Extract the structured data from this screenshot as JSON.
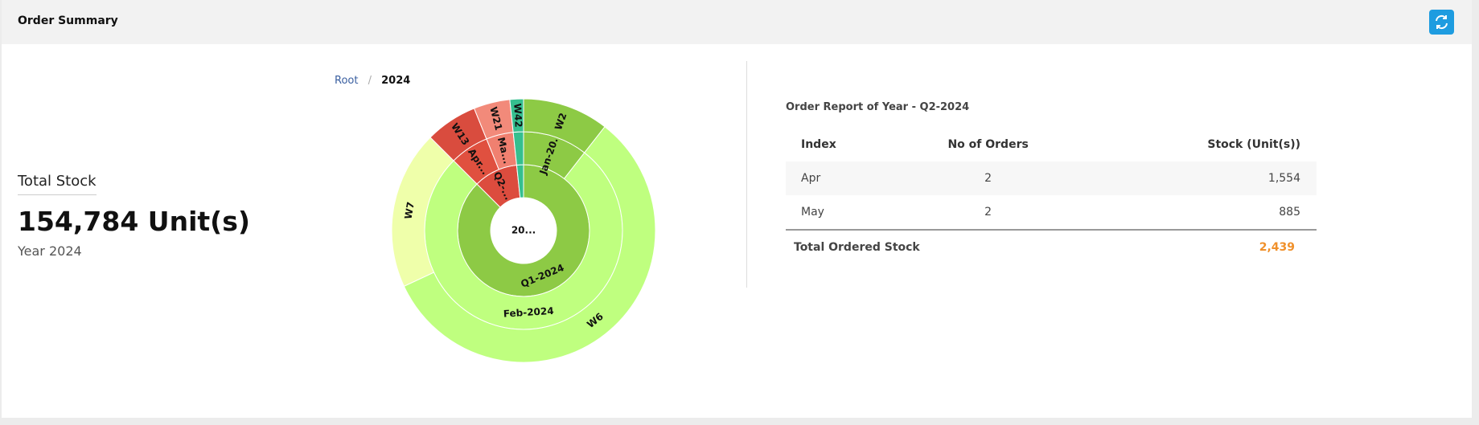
{
  "header": {
    "title": "Order Summary"
  },
  "summary": {
    "label": "Total Stock",
    "value": "154,784 Unit(s)",
    "period": "Year 2024"
  },
  "breadcrumb": {
    "items": [
      "Root",
      "2024"
    ],
    "separator": "/"
  },
  "chart_data": {
    "type": "sunburst",
    "center_label": "20...",
    "rings": [
      [
        {
          "label": "Q1-2024",
          "value": 315,
          "color": "#8dca45"
        },
        {
          "label": "Q2-...",
          "value": 39,
          "color": "#dc4c3e"
        },
        {
          "label": null,
          "value": 6,
          "color": "#35bf8f"
        }
      ],
      [
        {
          "label": "Jan-20...",
          "value": 38,
          "color": "#8dca45"
        },
        {
          "label": "Feb-2024",
          "value": 277,
          "color": "#bfff7f"
        },
        {
          "label": "Apr...",
          "value": 23,
          "color": "#e0503f"
        },
        {
          "label": "Ma...",
          "value": 16,
          "color": "#f08070"
        },
        {
          "label": null,
          "value": 6,
          "color": "#35bf8f"
        }
      ],
      [
        {
          "label": "W2",
          "value": 38,
          "color": "#8dca45"
        },
        {
          "label": "W6",
          "value": 207,
          "color": "#bfff7f"
        },
        {
          "label": "W7",
          "value": 70,
          "color": "#efffaa"
        },
        {
          "label": "W13",
          "value": 23,
          "color": "#d94c3e"
        },
        {
          "label": "W21",
          "value": 16,
          "color": "#f28a7a"
        },
        {
          "label": "W42",
          "value": 6,
          "color": "#35bf8f"
        }
      ]
    ]
  },
  "report": {
    "title": "Order Report of Year - Q2-2024",
    "table": {
      "headers": [
        "Index",
        "No of Orders",
        "Stock (Unit(s))"
      ],
      "rows": [
        [
          "Apr",
          "2",
          "1,554"
        ],
        [
          "May",
          "2",
          "885"
        ]
      ],
      "total": {
        "label": "Total Ordered Stock",
        "value": "2,439"
      }
    }
  }
}
